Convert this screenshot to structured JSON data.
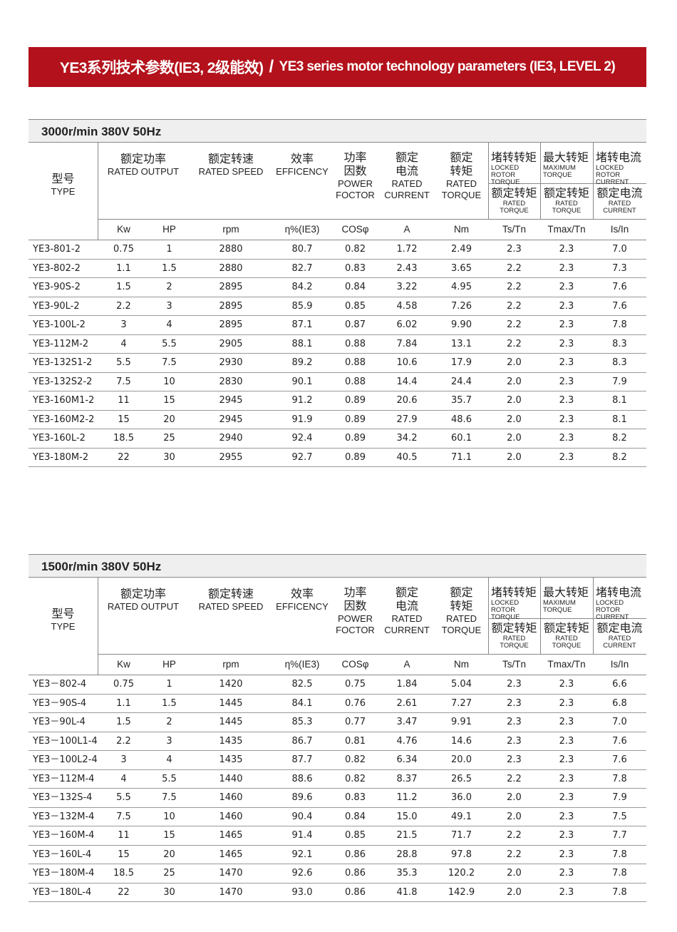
{
  "title": {
    "zh": "YE3系列技术参数(IE3, 2级能效)",
    "separator": "/",
    "en": "YE3 series motor technology parameters (IE3, LEVEL 2)"
  },
  "columns": {
    "type_zh": "型号",
    "type_en": "TYPE",
    "output_zh": "额定功率",
    "output_en": "RATED OUTPUT",
    "speed_zh": "额定转速",
    "speed_en": "RATED SPEED",
    "eff_zh": "效率",
    "eff_en": "EFFICENCY",
    "pf_zh1": "功率",
    "pf_zh2": "因数",
    "pf_en1": "POWER",
    "pf_en2": "FOCTOR",
    "cur_zh1": "额定",
    "cur_zh2": "电流",
    "cur_en1": "RATED",
    "cur_en2": "CURRENT",
    "tq_zh1": "额定",
    "tq_zh2": "转矩",
    "tq_en1": "RATED",
    "tq_en2": "TORQUE",
    "lrt_zh": "堵转转矩",
    "lrt_en1": "LOCKED",
    "lrt_en2": "ROTOR TORQUE",
    "max_zh": "最大转矩",
    "max_en1": "MAXIMUM",
    "max_en2": "TORQUE",
    "lrc_zh": "堵转电流",
    "lrc_en1": "LOCKED",
    "lrc_en2": "ROTOR CURRENT",
    "rt_zh": "额定转矩",
    "rt_en": "RATED TORQUE",
    "rt2_zh": "额定转矩",
    "rt2_en": "RATED TORQUE",
    "rc_zh": "额定电流",
    "rc_en": "RATED CURRENT",
    "units": [
      "Kw",
      "HP",
      "rpm",
      "η%(IE3)",
      "COSφ",
      "A",
      "Nm",
      "Ts/Tn",
      "Tmax/Tn",
      "Is/In"
    ]
  },
  "tables": [
    {
      "heading": "3000r/min   380V  50Hz",
      "rows": [
        [
          "YE3-801-2",
          "0.75",
          "1",
          "2880",
          "80.7",
          "0.82",
          "1.72",
          "2.49",
          "2.3",
          "2.3",
          "7.0"
        ],
        [
          "YE3-802-2",
          "1.1",
          "1.5",
          "2880",
          "82.7",
          "0.83",
          "2.43",
          "3.65",
          "2.2",
          "2.3",
          "7.3"
        ],
        [
          "YE3-90S-2",
          "1.5",
          "2",
          "2895",
          "84.2",
          "0.84",
          "3.22",
          "4.95",
          "2.2",
          "2.3",
          "7.6"
        ],
        [
          "YE3-90L-2",
          "2.2",
          "3",
          "2895",
          "85.9",
          "0.85",
          "4.58",
          "7.26",
          "2.2",
          "2.3",
          "7.6"
        ],
        [
          "YE3-100L-2",
          "3",
          "4",
          "2895",
          "87.1",
          "0.87",
          "6.02",
          "9.90",
          "2.2",
          "2.3",
          "7.8"
        ],
        [
          "YE3-112M-2",
          "4",
          "5.5",
          "2905",
          "88.1",
          "0.88",
          "7.84",
          "13.1",
          "2.2",
          "2.3",
          "8.3"
        ],
        [
          "YE3-132S1-2",
          "5.5",
          "7.5",
          "2930",
          "89.2",
          "0.88",
          "10.6",
          "17.9",
          "2.0",
          "2.3",
          "8.3"
        ],
        [
          "YE3-132S2-2",
          "7.5",
          "10",
          "2830",
          "90.1",
          "0.88",
          "14.4",
          "24.4",
          "2.0",
          "2.3",
          "7.9"
        ],
        [
          "YE3-160M1-2",
          "11",
          "15",
          "2945",
          "91.2",
          "0.89",
          "20.6",
          "35.7",
          "2.0",
          "2.3",
          "8.1"
        ],
        [
          "YE3-160M2-2",
          "15",
          "20",
          "2945",
          "91.9",
          "0.89",
          "27.9",
          "48.6",
          "2.0",
          "2.3",
          "8.1"
        ],
        [
          "YE3-160L-2",
          "18.5",
          "25",
          "2940",
          "92.4",
          "0.89",
          "34.2",
          "60.1",
          "2.0",
          "2.3",
          "8.2"
        ],
        [
          "YE3-180M-2",
          "22",
          "30",
          "2955",
          "92.7",
          "0.89",
          "40.5",
          "71.1",
          "2.0",
          "2.3",
          "8.2"
        ]
      ]
    },
    {
      "heading": "1500r/min   380V  50Hz",
      "rows": [
        [
          "YE3－802-4",
          "0.75",
          "1",
          "1420",
          "82.5",
          "0.75",
          "1.84",
          "5.04",
          "2.3",
          "2.3",
          "6.6"
        ],
        [
          "YE3－90S-4",
          "1.1",
          "1.5",
          "1445",
          "84.1",
          "0.76",
          "2.61",
          "7.27",
          "2.3",
          "2.3",
          "6.8"
        ],
        [
          "YE3－90L-4",
          "1.5",
          "2",
          "1445",
          "85.3",
          "0.77",
          "3.47",
          "9.91",
          "2.3",
          "2.3",
          "7.0"
        ],
        [
          "YE3－100L1-4",
          "2.2",
          "3",
          "1435",
          "86.7",
          "0.81",
          "4.76",
          "14.6",
          "2.3",
          "2.3",
          "7.6"
        ],
        [
          "YE3－100L2-4",
          "3",
          "4",
          "1435",
          "87.7",
          "0.82",
          "6.34",
          "20.0",
          "2.3",
          "2.3",
          "7.6"
        ],
        [
          "YE3－112M-4",
          "4",
          "5.5",
          "1440",
          "88.6",
          "0.82",
          "8.37",
          "26.5",
          "2.2",
          "2.3",
          "7.8"
        ],
        [
          "YE3－132S-4",
          "5.5",
          "7.5",
          "1460",
          "89.6",
          "0.83",
          "11.2",
          "36.0",
          "2.0",
          "2.3",
          "7.9"
        ],
        [
          "YE3－132M-4",
          "7.5",
          "10",
          "1460",
          "90.4",
          "0.84",
          "15.0",
          "49.1",
          "2.0",
          "2.3",
          "7.5"
        ],
        [
          "YE3－160M-4",
          "11",
          "15",
          "1465",
          "91.4",
          "0.85",
          "21.5",
          "71.7",
          "2.2",
          "2.3",
          "7.7"
        ],
        [
          "YE3－160L-4",
          "15",
          "20",
          "1465",
          "92.1",
          "0.86",
          "28.8",
          "97.8",
          "2.2",
          "2.3",
          "7.8"
        ],
        [
          "YE3－180M-4",
          "18.5",
          "25",
          "1470",
          "92.6",
          "0.86",
          "35.3",
          "120.2",
          "2.0",
          "2.3",
          "7.8"
        ],
        [
          "YE3－180L-4",
          "22",
          "30",
          "1470",
          "93.0",
          "0.86",
          "41.8",
          "142.9",
          "2.0",
          "2.3",
          "7.8"
        ]
      ]
    }
  ]
}
